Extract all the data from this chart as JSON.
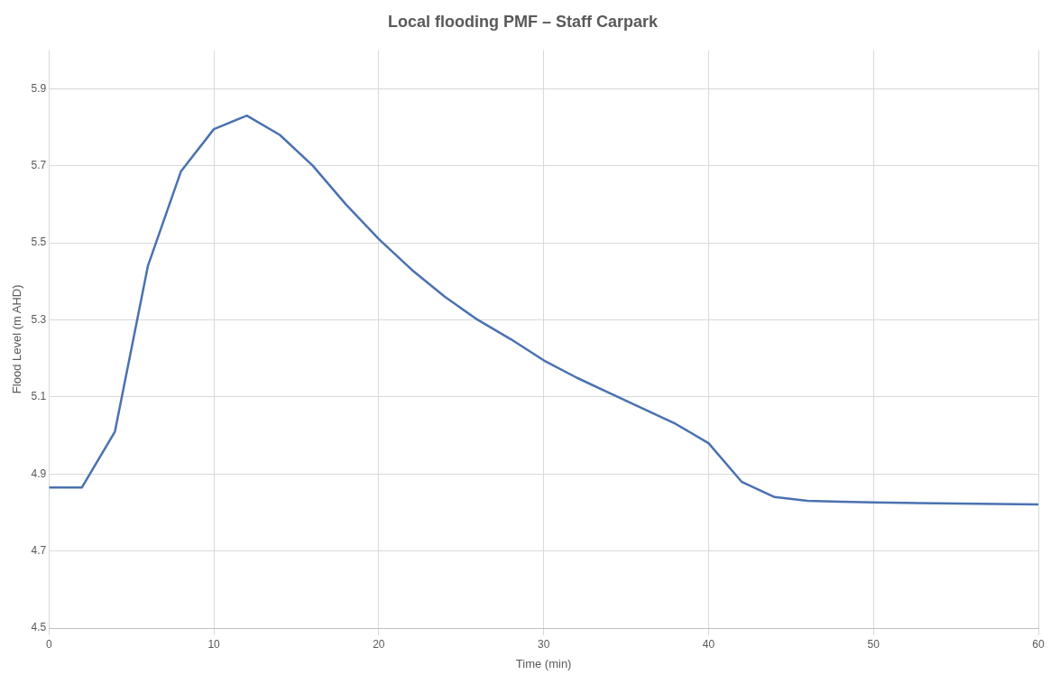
{
  "chart_data": {
    "type": "line",
    "title": "Local flooding PMF – Staff Carpark",
    "xlabel": "Time (min)",
    "ylabel": "Flood Level (m AHD)",
    "series": [
      {
        "color": "#4a72b0",
        "x": [
          0,
          2,
          4,
          6,
          8,
          10,
          12,
          14,
          16,
          18,
          20,
          22,
          24,
          26,
          28,
          30,
          32,
          34,
          36,
          38,
          40,
          42,
          44,
          46,
          48,
          50,
          55,
          60
        ],
        "values": [
          4.865,
          4.865,
          5.01,
          5.44,
          5.685,
          5.795,
          5.83,
          5.78,
          5.7,
          5.6,
          5.51,
          5.43,
          5.36,
          5.3,
          5.25,
          5.195,
          5.15,
          5.11,
          5.07,
          5.03,
          4.98,
          4.88,
          4.84,
          4.83,
          4.828,
          4.826,
          4.823,
          4.821
        ]
      }
    ],
    "xlim": [
      0,
      60
    ],
    "xticks": [
      0,
      10,
      20,
      30,
      40,
      50,
      60
    ],
    "ylim": [
      4.5,
      6.0
    ],
    "yticks": [
      4.5,
      4.7,
      4.9,
      5.1,
      5.3,
      5.5,
      5.7,
      5.9
    ],
    "grid": true,
    "legend": false,
    "marker": "none",
    "line_style": "solid"
  }
}
